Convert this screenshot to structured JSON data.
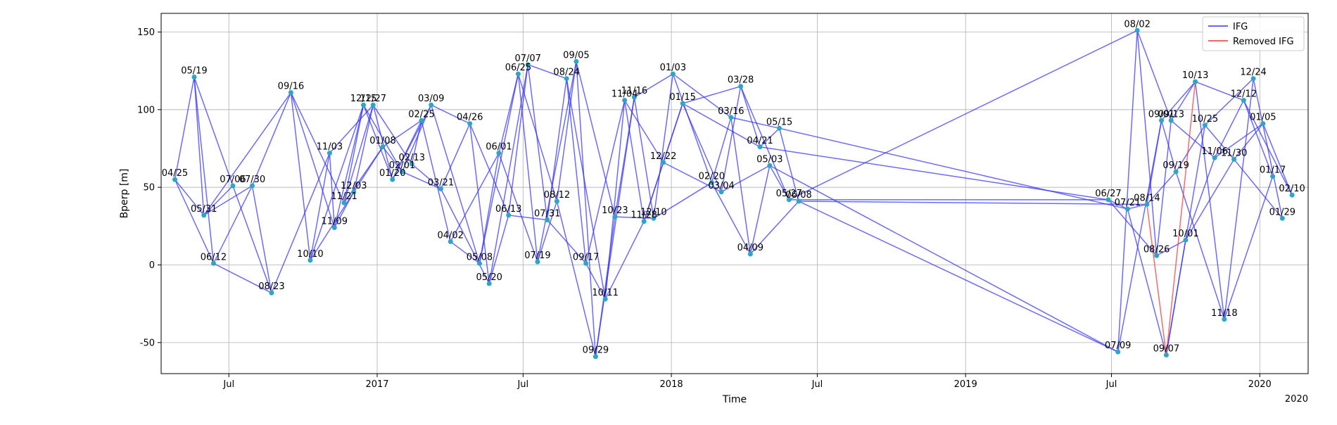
{
  "chart_data": {
    "type": "line",
    "title": "",
    "xlabel": "Time",
    "ylabel": "Bperp [m]",
    "ylim": [
      -70,
      162
    ],
    "xlim": [
      "2016-04-08",
      "2020-03-01"
    ],
    "yticks": [
      -50,
      0,
      50,
      100,
      150
    ],
    "xticks": [
      {
        "date": "2016-07-01",
        "label": "Jul"
      },
      {
        "date": "2017-01-01",
        "label": "2017"
      },
      {
        "date": "2017-07-01",
        "label": "Jul"
      },
      {
        "date": "2018-01-01",
        "label": "2018"
      },
      {
        "date": "2018-07-01",
        "label": "Jul"
      },
      {
        "date": "2019-01-01",
        "label": "2019"
      },
      {
        "date": "2019-07-01",
        "label": "Jul"
      },
      {
        "date": "2020-01-01",
        "label": "2020"
      }
    ],
    "offset_label": "2020",
    "grid": true,
    "legend": {
      "position": "top-right",
      "entries": [
        {
          "name": "IFG",
          "color": "#3333ee"
        },
        {
          "name": "Removed IFG",
          "color": "#ee3333"
        }
      ]
    },
    "colors": {
      "ifg": "#3333ee",
      "removed": "#ee3333",
      "point": "#2ca6c6"
    },
    "acquisitions": [
      {
        "date": "2016-04-25",
        "label": "04/25",
        "bperp": 55
      },
      {
        "date": "2016-05-19",
        "label": "05/19",
        "bperp": 121
      },
      {
        "date": "2016-05-31",
        "label": "05/31",
        "bperp": 32
      },
      {
        "date": "2016-06-12",
        "label": "06/12",
        "bperp": 1
      },
      {
        "date": "2016-07-06",
        "label": "07/06",
        "bperp": 51
      },
      {
        "date": "2016-07-30",
        "label": "07/30",
        "bperp": 51
      },
      {
        "date": "2016-08-23",
        "label": "08/23",
        "bperp": -18
      },
      {
        "date": "2016-09-16",
        "label": "09/16",
        "bperp": 111
      },
      {
        "date": "2016-10-10",
        "label": "10/10",
        "bperp": 3
      },
      {
        "date": "2016-11-03",
        "label": "11/03",
        "bperp": 72
      },
      {
        "date": "2016-11-09",
        "label": "11/09",
        "bperp": 24
      },
      {
        "date": "2016-11-21",
        "label": "11/21",
        "bperp": 40
      },
      {
        "date": "2016-12-03",
        "label": "12/03",
        "bperp": 47
      },
      {
        "date": "2016-12-15",
        "label": "12/15",
        "bperp": 103
      },
      {
        "date": "2016-12-27",
        "label": "12/27",
        "bperp": 103
      },
      {
        "date": "2017-01-08",
        "label": "01/08",
        "bperp": 76
      },
      {
        "date": "2017-01-20",
        "label": "01/20",
        "bperp": 55
      },
      {
        "date": "2017-02-01",
        "label": "02/01",
        "bperp": 60
      },
      {
        "date": "2017-02-13",
        "label": "02/13",
        "bperp": 65
      },
      {
        "date": "2017-02-25",
        "label": "02/25",
        "bperp": 93
      },
      {
        "date": "2017-03-09",
        "label": "03/09",
        "bperp": 103
      },
      {
        "date": "2017-03-21",
        "label": "03/21",
        "bperp": 49
      },
      {
        "date": "2017-04-02",
        "label": "04/02",
        "bperp": 15
      },
      {
        "date": "2017-04-26",
        "label": "04/26",
        "bperp": 91
      },
      {
        "date": "2017-05-08",
        "label": "05/08",
        "bperp": 1
      },
      {
        "date": "2017-05-20",
        "label": "05/20",
        "bperp": -12
      },
      {
        "date": "2017-06-01",
        "label": "06/01",
        "bperp": 72
      },
      {
        "date": "2017-06-13",
        "label": "06/13",
        "bperp": 32
      },
      {
        "date": "2017-06-25",
        "label": "06/25",
        "bperp": 123
      },
      {
        "date": "2017-07-07",
        "label": "07/07",
        "bperp": 129
      },
      {
        "date": "2017-07-19",
        "label": "07/19",
        "bperp": 2
      },
      {
        "date": "2017-07-31",
        "label": "07/31",
        "bperp": 29
      },
      {
        "date": "2017-08-12",
        "label": "08/12",
        "bperp": 41
      },
      {
        "date": "2017-08-24",
        "label": "08/24",
        "bperp": 120
      },
      {
        "date": "2017-09-05",
        "label": "09/05",
        "bperp": 131
      },
      {
        "date": "2017-09-17",
        "label": "09/17",
        "bperp": 1
      },
      {
        "date": "2017-09-29",
        "label": "09/29",
        "bperp": -59
      },
      {
        "date": "2017-10-11",
        "label": "10/11",
        "bperp": -22
      },
      {
        "date": "2017-10-23",
        "label": "10/23",
        "bperp": 31
      },
      {
        "date": "2017-11-04",
        "label": "11/04",
        "bperp": 106
      },
      {
        "date": "2017-11-16",
        "label": "11/16",
        "bperp": 108
      },
      {
        "date": "2017-11-28",
        "label": "11/28",
        "bperp": 28
      },
      {
        "date": "2017-12-10",
        "label": "12/10",
        "bperp": 30
      },
      {
        "date": "2017-12-22",
        "label": "12/22",
        "bperp": 66
      },
      {
        "date": "2018-01-03",
        "label": "01/03",
        "bperp": 123
      },
      {
        "date": "2018-01-15",
        "label": "01/15",
        "bperp": 104
      },
      {
        "date": "2018-02-20",
        "label": "02/20",
        "bperp": 53
      },
      {
        "date": "2018-03-04",
        "label": "03/04",
        "bperp": 47
      },
      {
        "date": "2018-03-16",
        "label": "03/16",
        "bperp": 95
      },
      {
        "date": "2018-03-28",
        "label": "03/28",
        "bperp": 115
      },
      {
        "date": "2018-04-09",
        "label": "04/09",
        "bperp": 7
      },
      {
        "date": "2018-04-21",
        "label": "04/21",
        "bperp": 76
      },
      {
        "date": "2018-05-03",
        "label": "05/03",
        "bperp": 64
      },
      {
        "date": "2018-05-15",
        "label": "05/15",
        "bperp": 88
      },
      {
        "date": "2018-05-27",
        "label": "05/27",
        "bperp": 42
      },
      {
        "date": "2018-06-08",
        "label": "06/08",
        "bperp": 41
      },
      {
        "date": "2019-06-27",
        "label": "06/27",
        "bperp": 42
      },
      {
        "date": "2019-07-09",
        "label": "07/09",
        "bperp": -56
      },
      {
        "date": "2019-07-21",
        "label": "07/21",
        "bperp": 36
      },
      {
        "date": "2019-08-02",
        "label": "08/02",
        "bperp": 151
      },
      {
        "date": "2019-08-14",
        "label": "08/14",
        "bperp": 39
      },
      {
        "date": "2019-08-26",
        "label": "08/26",
        "bperp": 6
      },
      {
        "date": "2019-09-01",
        "label": "09/01",
        "bperp": 93
      },
      {
        "date": "2019-09-07",
        "label": "09/07",
        "bperp": -58
      },
      {
        "date": "2019-09-13",
        "label": "09/13",
        "bperp": 93
      },
      {
        "date": "2019-09-19",
        "label": "09/19",
        "bperp": 60
      },
      {
        "date": "2019-10-01",
        "label": "10/01",
        "bperp": 16
      },
      {
        "date": "2019-10-13",
        "label": "10/13",
        "bperp": 118
      },
      {
        "date": "2019-10-25",
        "label": "10/25",
        "bperp": 90
      },
      {
        "date": "2019-11-06",
        "label": "11/06",
        "bperp": 69
      },
      {
        "date": "2019-11-18",
        "label": "11/18",
        "bperp": -35
      },
      {
        "date": "2019-11-30",
        "label": "11/30",
        "bperp": 68
      },
      {
        "date": "2019-12-12",
        "label": "12/12",
        "bperp": 106
      },
      {
        "date": "2019-12-24",
        "label": "12/24",
        "bperp": 120
      },
      {
        "date": "2020-01-05",
        "label": "01/05",
        "bperp": 91
      },
      {
        "date": "2020-01-17",
        "label": "01/17",
        "bperp": 57
      },
      {
        "date": "2020-01-29",
        "label": "01/29",
        "bperp": 30
      },
      {
        "date": "2020-02-10",
        "label": "02/10",
        "bperp": 45
      }
    ],
    "interferograms": [
      [
        "04/25",
        "05/19"
      ],
      [
        "04/25",
        "05/31"
      ],
      [
        "04/25",
        "06/12"
      ],
      [
        "05/19",
        "05/31"
      ],
      [
        "05/19",
        "06/12"
      ],
      [
        "05/19",
        "07/06"
      ],
      [
        "05/31",
        "07/06"
      ],
      [
        "05/31",
        "07/30"
      ],
      [
        "05/31",
        "09/16"
      ],
      [
        "06/12",
        "07/30"
      ],
      [
        "06/12",
        "08/23"
      ],
      [
        "07/06",
        "08/23"
      ],
      [
        "07/30",
        "08/23"
      ],
      [
        "07/30",
        "09/16"
      ],
      [
        "08/23",
        "11/03"
      ],
      [
        "09/16",
        "10/10"
      ],
      [
        "09/16",
        "11/09"
      ],
      [
        "09/16",
        "11/21"
      ],
      [
        "10/10",
        "11/03"
      ],
      [
        "10/10",
        "12/03"
      ],
      [
        "10/10",
        "12/15"
      ],
      [
        "11/03",
        "11/09"
      ],
      [
        "11/03",
        "12/27"
      ],
      [
        "11/09",
        "12/03"
      ],
      [
        "11/09",
        "12/15"
      ],
      [
        "11/21",
        "12/15"
      ],
      [
        "11/21",
        "12/27"
      ],
      [
        "11/21",
        "01/08"
      ],
      [
        "12/03",
        "12/27"
      ],
      [
        "12/03",
        "01/08"
      ],
      [
        "12/15",
        "01/20"
      ],
      [
        "12/15",
        "02/01"
      ],
      [
        "12/27",
        "01/20"
      ],
      [
        "12/27",
        "02/13"
      ],
      [
        "01/08",
        "02/01"
      ],
      [
        "01/08",
        "02/25"
      ],
      [
        "01/20",
        "02/25"
      ],
      [
        "01/20",
        "03/09"
      ],
      [
        "02/01",
        "03/09"
      ],
      [
        "02/01",
        "03/21"
      ],
      [
        "02/13",
        "02/25"
      ],
      [
        "02/13",
        "03/21"
      ],
      [
        "02/25",
        "04/02"
      ],
      [
        "03/09",
        "04/26"
      ],
      [
        "03/09",
        "05/08"
      ],
      [
        "03/21",
        "04/26"
      ],
      [
        "03/21",
        "05/20"
      ],
      [
        "04/02",
        "05/08"
      ],
      [
        "04/02",
        "06/01"
      ],
      [
        "04/26",
        "05/20"
      ],
      [
        "04/26",
        "06/13"
      ],
      [
        "05/08",
        "06/01"
      ],
      [
        "05/08",
        "06/25"
      ],
      [
        "05/20",
        "06/13"
      ],
      [
        "05/20",
        "07/07"
      ],
      [
        "06/01",
        "06/25"
      ],
      [
        "06/01",
        "07/19"
      ],
      [
        "06/13",
        "07/07"
      ],
      [
        "06/13",
        "07/31"
      ],
      [
        "06/25",
        "07/19"
      ],
      [
        "06/25",
        "08/12"
      ],
      [
        "07/07",
        "07/31"
      ],
      [
        "07/07",
        "08/24"
      ],
      [
        "07/19",
        "08/12"
      ],
      [
        "07/19",
        "09/05"
      ],
      [
        "07/31",
        "08/24"
      ],
      [
        "07/31",
        "09/17"
      ],
      [
        "08/12",
        "09/05"
      ],
      [
        "08/12",
        "09/29"
      ],
      [
        "08/24",
        "09/17"
      ],
      [
        "08/24",
        "10/11"
      ],
      [
        "09/05",
        "09/29"
      ],
      [
        "09/05",
        "10/23"
      ],
      [
        "09/17",
        "10/11"
      ],
      [
        "09/17",
        "11/04"
      ],
      [
        "09/29",
        "10/23"
      ],
      [
        "09/29",
        "11/16"
      ],
      [
        "10/11",
        "11/04"
      ],
      [
        "10/11",
        "11/28"
      ],
      [
        "10/23",
        "11/16"
      ],
      [
        "10/23",
        "12/10"
      ],
      [
        "11/04",
        "11/28"
      ],
      [
        "11/04",
        "12/22"
      ],
      [
        "11/16",
        "12/10"
      ],
      [
        "11/16",
        "01/03"
      ],
      [
        "11/28",
        "12/22"
      ],
      [
        "11/28",
        "01/15"
      ],
      [
        "12/10",
        "01/03"
      ],
      [
        "12/10",
        "02/20"
      ],
      [
        "12/22",
        "01/15"
      ],
      [
        "12/22",
        "03/04"
      ],
      [
        "01/03",
        "02/20"
      ],
      [
        "01/03",
        "03/16"
      ],
      [
        "01/15",
        "03/04"
      ],
      [
        "01/15",
        "03/28"
      ],
      [
        "01/15",
        "04/21"
      ],
      [
        "02/20",
        "03/16"
      ],
      [
        "02/20",
        "04/09"
      ],
      [
        "03/04",
        "03/28"
      ],
      [
        "03/04",
        "05/03"
      ],
      [
        "03/16",
        "04/09"
      ],
      [
        "03/16",
        "05/15"
      ],
      [
        "03/28",
        "04/21"
      ],
      [
        "03/28",
        "05/27"
      ],
      [
        "04/09",
        "05/03"
      ],
      [
        "04/09",
        "06/08"
      ],
      [
        "04/21",
        "05/15"
      ],
      [
        "04/21",
        "06/27"
      ],
      [
        "05/03",
        "05/27"
      ],
      [
        "05/03",
        "07/09"
      ],
      [
        "05/15",
        "06/08"
      ],
      [
        "05/15",
        "07/21"
      ],
      [
        "05/27",
        "06/27"
      ],
      [
        "05/27",
        "08/02"
      ],
      [
        "06/08",
        "07/09"
      ],
      [
        "06/08",
        "08/14"
      ],
      [
        "06/27",
        "07/21"
      ],
      [
        "06/27",
        "08/26"
      ],
      [
        "07/09",
        "08/02"
      ],
      [
        "07/09",
        "09/01"
      ],
      [
        "07/21",
        "08/14"
      ],
      [
        "07/21",
        "09/07"
      ],
      [
        "08/02",
        "08/26"
      ],
      [
        "08/02",
        "09/13"
      ],
      [
        "08/14",
        "09/01"
      ],
      [
        "08/14",
        "09/19"
      ],
      [
        "08/26",
        "09/13"
      ],
      [
        "08/26",
        "10/01"
      ],
      [
        "09/01",
        "09/19"
      ],
      [
        "09/01",
        "10/13"
      ],
      [
        "09/07",
        "10/01"
      ],
      [
        "09/07",
        "10/25"
      ],
      [
        "09/13",
        "10/13"
      ],
      [
        "09/13",
        "11/06"
      ],
      [
        "09/19",
        "10/25"
      ],
      [
        "09/19",
        "11/18"
      ],
      [
        "10/01",
        "11/06"
      ],
      [
        "10/01",
        "11/30"
      ],
      [
        "10/13",
        "11/18"
      ],
      [
        "10/13",
        "12/12"
      ],
      [
        "10/25",
        "11/30"
      ],
      [
        "10/25",
        "12/24"
      ],
      [
        "11/06",
        "12/12"
      ],
      [
        "11/06",
        "01/05"
      ],
      [
        "11/18",
        "12/24"
      ],
      [
        "11/18",
        "01/17"
      ],
      [
        "11/30",
        "01/05"
      ],
      [
        "11/30",
        "01/29"
      ],
      [
        "12/12",
        "01/17"
      ],
      [
        "12/12",
        "02/10"
      ],
      [
        "12/24",
        "01/29"
      ],
      [
        "01/05",
        "02/10"
      ]
    ],
    "removed_interferograms": [
      [
        "08/14",
        "09/07"
      ],
      [
        "09/07",
        "10/13"
      ]
    ]
  }
}
